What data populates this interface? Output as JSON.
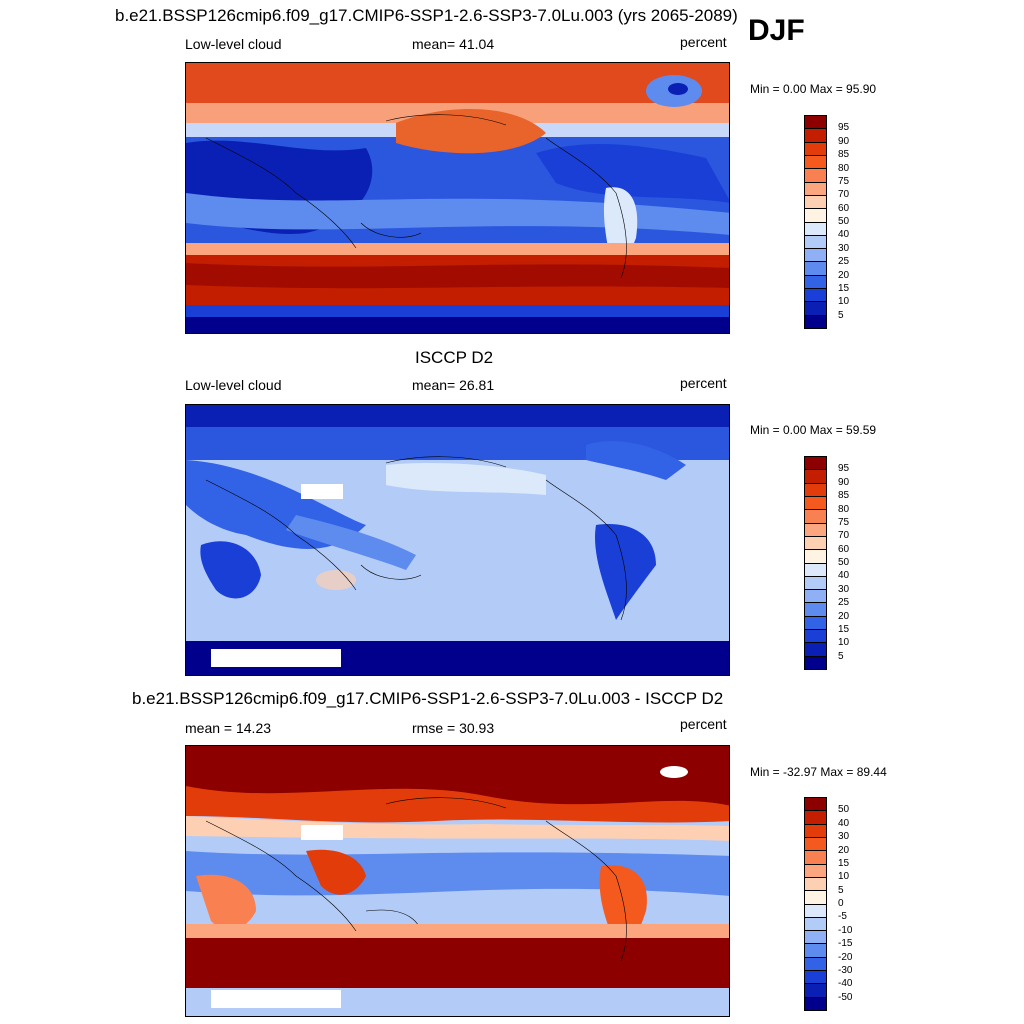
{
  "season": "DJF",
  "top_title": "b.e21.BSSP126cmip6.f09_g17.CMIP6-SSP1-2.6-SSP3-7.0Lu.003 (yrs 2065-2089)",
  "obs_title": "ISCCP D2",
  "diff_title": "b.e21.BSSP126cmip6.f09_g17.CMIP6-SSP1-2.6-SSP3-7.0Lu.003 - ISCCP D2",
  "panels": [
    {
      "left_label": "Low-level cloud",
      "center_label": "mean=  41.04",
      "units": "percent",
      "minmax": "Min =   0.00 Max =  95.90"
    },
    {
      "left_label": "Low-level cloud",
      "center_label": "mean=  26.81",
      "units": "percent",
      "minmax": "Min =   0.00 Max =  59.59"
    },
    {
      "left_label": "mean =  14.23",
      "center_label": "rmse =  30.93",
      "units": "percent",
      "minmax": "Min = -32.97 Max =  89.44"
    }
  ],
  "colorbars": {
    "abs_levels": [
      "95",
      "90",
      "85",
      "80",
      "75",
      "70",
      "60",
      "50",
      "40",
      "30",
      "25",
      "20",
      "15",
      "10",
      "5"
    ],
    "diff_levels": [
      "50",
      "40",
      "30",
      "20",
      "15",
      "10",
      "5",
      "0",
      "-5",
      "-10",
      "-15",
      "-20",
      "-30",
      "-40",
      "-50"
    ],
    "colors": [
      "#8c0000",
      "#c41e00",
      "#e23c0a",
      "#f45a1e",
      "#f98050",
      "#fca680",
      "#fdd0b4",
      "#fff3e4",
      "#dce9fb",
      "#b3cbf7",
      "#8fb0f4",
      "#5e8bee",
      "#3262e6",
      "#1a3fd6",
      "#0a20b4",
      "#00008c"
    ]
  }
}
